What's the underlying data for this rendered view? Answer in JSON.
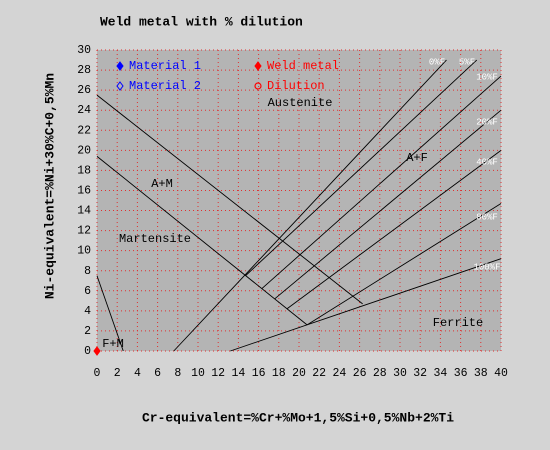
{
  "chart_data": {
    "type": "line",
    "title": "Weld metal with  % dilution",
    "x_label": "Cr-equivalent=%Cr+%Mo+1,5%Si+0,5%Nb+2%Ti",
    "y_label": "Ni-equivalent=%Ni+30%C+0,5%Mn",
    "xlim": [
      0,
      40
    ],
    "ylim": [
      0,
      30
    ],
    "xticks": [
      0,
      2,
      4,
      6,
      8,
      10,
      12,
      14,
      16,
      18,
      20,
      22,
      24,
      26,
      28,
      30,
      32,
      34,
      36,
      38,
      40
    ],
    "yticks": [
      0,
      2,
      4,
      6,
      8,
      10,
      12,
      14,
      16,
      18,
      20,
      22,
      24,
      26,
      28,
      30
    ],
    "grid": true,
    "series": [
      {
        "color": "#000000",
        "x": [
          0,
          26.3
        ],
        "values": [
          25.5,
          4.7
        ]
      },
      {
        "color": "#000000",
        "x": [
          0,
          20.8
        ],
        "values": [
          19.4,
          2.6
        ]
      },
      {
        "color": "#000000",
        "x": [
          0,
          2.6
        ],
        "values": [
          7.5,
          0
        ]
      },
      {
        "name": "0%F",
        "color": "#000000",
        "x": [
          7.6,
          34.6
        ],
        "values": [
          0,
          29
        ]
      },
      {
        "name": "5%F",
        "color": "#000000",
        "x": [
          14.7,
          37.6
        ],
        "values": [
          7.5,
          29
        ]
      },
      {
        "name": "10%F",
        "color": "#000000",
        "x": [
          16.3,
          40
        ],
        "values": [
          6.2,
          27.4
        ]
      },
      {
        "name": "20%F",
        "color": "#000000",
        "x": [
          17.6,
          40
        ],
        "values": [
          5.2,
          24
        ]
      },
      {
        "name": "40%F",
        "color": "#000000",
        "x": [
          18.8,
          40
        ],
        "values": [
          4.2,
          20
        ]
      },
      {
        "name": "80%F",
        "color": "#000000",
        "x": [
          20.8,
          40
        ],
        "values": [
          2.6,
          14.7
        ]
      },
      {
        "name": "100%F",
        "color": "#000000",
        "x": [
          13.2,
          40
        ],
        "values": [
          0,
          9.2
        ]
      },
      {
        "name": "Material 1",
        "color": "#0000ff",
        "marker": "diamond",
        "x": [],
        "values": []
      },
      {
        "name": "Material 2",
        "color": "#0000ff",
        "marker": "diamond-open",
        "x": [],
        "values": []
      },
      {
        "name": "Weld metal",
        "color": "#ff0000",
        "marker": "diamond",
        "x": [
          0
        ],
        "values": [
          0
        ]
      },
      {
        "name": "Dilution",
        "color": "#ff0000",
        "marker": "circle-open",
        "x": [],
        "values": []
      }
    ],
    "annotations": [
      "Austenite",
      "A+F",
      "A+M",
      "Martensite",
      "Ferrite",
      "F+M"
    ]
  }
}
